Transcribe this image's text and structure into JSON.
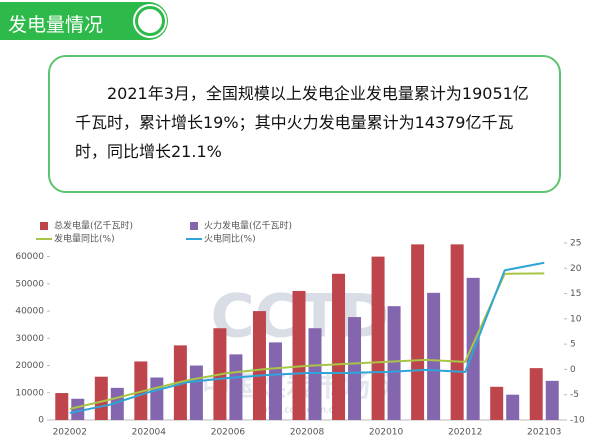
{
  "header": {
    "title": "发电量情况"
  },
  "summary": "2021年3月，全国规模以上发电企业发电量累计为19051亿千瓦时，累计增长19%；其中火力发电量累计为14379亿千瓦时，同比增长21.1%",
  "watermark": {
    "brand": "CCTD",
    "site_name": "中国煤炭市场网",
    "url": "www.cctd.com.cn"
  },
  "chart_data": {
    "type": "bar",
    "categories": [
      "202002",
      null,
      "202004",
      null,
      "202006",
      null,
      "202008",
      null,
      "202010",
      null,
      "202012",
      null,
      "202103"
    ],
    "series": [
      {
        "name": "总发电量(亿千瓦时)",
        "type": "bar",
        "color": "#bf454c",
        "values": [
          9900,
          15900,
          21500,
          27400,
          33700,
          40000,
          47400,
          53700,
          60000,
          64500,
          64500,
          12200,
          19051
        ]
      },
      {
        "name": "火力发电量(亿千瓦时)",
        "type": "bar",
        "color": "#8466ae",
        "values": [
          7800,
          11800,
          15600,
          20000,
          24100,
          28500,
          33700,
          37800,
          41800,
          46700,
          52200,
          9300,
          14379
        ]
      },
      {
        "name": "发电量同比(%)",
        "type": "line",
        "axis": "y2",
        "color": "#a9c545",
        "values": [
          -7.8,
          -6,
          -4,
          -2.1,
          -0.7,
          0.1,
          0.7,
          1.1,
          1.5,
          1.9,
          1.5,
          18.9,
          19
        ]
      },
      {
        "name": "火电同比(%)",
        "type": "line",
        "axis": "y2",
        "color": "#2fa4d8",
        "values": [
          -8.6,
          -7,
          -4.5,
          -2.5,
          -1.7,
          -1.1,
          -0.7,
          -0.7,
          -0.5,
          -0.1,
          -0.5,
          19.6,
          21.1
        ]
      }
    ],
    "ylim": [
      0,
      65000
    ],
    "yticks": [
      0,
      10000,
      20000,
      30000,
      40000,
      50000,
      60000
    ],
    "y2lim": [
      -10,
      25
    ],
    "y2ticks": [
      -10,
      -5,
      0,
      5,
      10,
      15,
      20,
      25
    ],
    "grid": false
  }
}
